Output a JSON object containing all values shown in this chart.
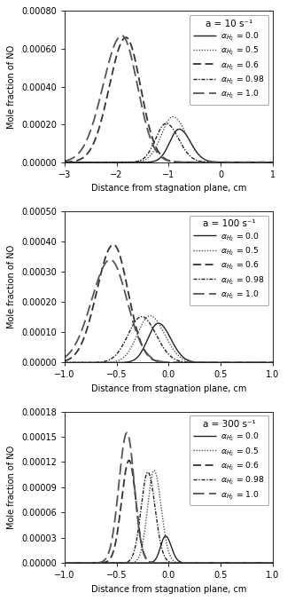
{
  "panels": [
    {
      "title": "a = 10 s⁻¹",
      "xlim": [
        -3.0,
        1.0
      ],
      "xticks": [
        -3.0,
        -2.0,
        -1.0,
        0.0,
        1.0
      ],
      "ylim": [
        0,
        0.0008
      ],
      "yticks": [
        0.0,
        0.0002,
        0.0004,
        0.0006,
        0.0008
      ],
      "curves": [
        {
          "label": "0.0",
          "style": "solid",
          "color": "#222222",
          "lw": 1.0,
          "peak_x": -0.8,
          "peak_y": 0.000175,
          "sigma_l": 0.18,
          "sigma_r": 0.22
        },
        {
          "label": "0.5",
          "style": "dotted",
          "color": "#555555",
          "lw": 1.0,
          "peak_x": -0.92,
          "peak_y": 0.00024,
          "sigma_l": 0.22,
          "sigma_r": 0.26
        },
        {
          "label": "0.6",
          "style": "dashed",
          "color": "#333333",
          "lw": 1.3,
          "peak_x": -1.82,
          "peak_y": 0.00066,
          "sigma_l": 0.32,
          "sigma_r": 0.28
        },
        {
          "label": "0.98",
          "style": "dashdot",
          "color": "#222222",
          "lw": 1.0,
          "peak_x": -1.05,
          "peak_y": 0.000205,
          "sigma_l": 0.2,
          "sigma_r": 0.24
        },
        {
          "label": "1.0",
          "style": "loosedash",
          "color": "#555555",
          "lw": 1.3,
          "peak_x": -1.9,
          "peak_y": 0.00067,
          "sigma_l": 0.36,
          "sigma_r": 0.3
        }
      ]
    },
    {
      "title": "a = 100 s⁻¹",
      "xlim": [
        -1.0,
        1.0
      ],
      "xticks": [
        -1.0,
        -0.5,
        0.0,
        0.5,
        1.0
      ],
      "ylim": [
        0,
        0.0005
      ],
      "yticks": [
        0.0,
        0.0001,
        0.0002,
        0.0003,
        0.0004,
        0.0005
      ],
      "curves": [
        {
          "label": "0.0",
          "style": "solid",
          "color": "#222222",
          "lw": 1.0,
          "peak_x": -0.1,
          "peak_y": 0.00013,
          "sigma_l": 0.1,
          "sigma_r": 0.12
        },
        {
          "label": "0.5",
          "style": "dotted",
          "color": "#555555",
          "lw": 1.0,
          "peak_x": -0.18,
          "peak_y": 0.000155,
          "sigma_l": 0.12,
          "sigma_r": 0.14
        },
        {
          "label": "0.6",
          "style": "dashed",
          "color": "#333333",
          "lw": 1.3,
          "peak_x": -0.53,
          "peak_y": 0.00039,
          "sigma_l": 0.16,
          "sigma_r": 0.14
        },
        {
          "label": "0.98",
          "style": "dashdot",
          "color": "#222222",
          "lw": 1.0,
          "peak_x": -0.26,
          "peak_y": 0.000152,
          "sigma_l": 0.13,
          "sigma_r": 0.14
        },
        {
          "label": "1.0",
          "style": "loosedash",
          "color": "#555555",
          "lw": 1.3,
          "peak_x": -0.56,
          "peak_y": 0.00034,
          "sigma_l": 0.18,
          "sigma_r": 0.16
        }
      ]
    },
    {
      "title": "a = 300 s⁻¹",
      "xlim": [
        -1.0,
        1.0
      ],
      "xticks": [
        -1.0,
        -0.5,
        0.0,
        0.5,
        1.0
      ],
      "ylim": [
        0,
        0.00018
      ],
      "yticks": [
        0.0,
        3e-05,
        6e-05,
        9e-05,
        0.00012,
        0.00015,
        0.00018
      ],
      "curves": [
        {
          "label": "0.0",
          "style": "solid",
          "color": "#222222",
          "lw": 1.0,
          "peak_x": -0.03,
          "peak_y": 3.2e-05,
          "sigma_l": 0.048,
          "sigma_r": 0.055
        },
        {
          "label": "0.5",
          "style": "dotted",
          "color": "#555555",
          "lw": 1.0,
          "peak_x": -0.14,
          "peak_y": 0.00011,
          "sigma_l": 0.062,
          "sigma_r": 0.068
        },
        {
          "label": "0.6",
          "style": "dashed",
          "color": "#333333",
          "lw": 1.3,
          "peak_x": -0.38,
          "peak_y": 0.000122,
          "sigma_l": 0.072,
          "sigma_r": 0.065
        },
        {
          "label": "0.98",
          "style": "dashdot",
          "color": "#222222",
          "lw": 1.0,
          "peak_x": -0.2,
          "peak_y": 0.000108,
          "sigma_l": 0.065,
          "sigma_r": 0.07
        },
        {
          "label": "1.0",
          "style": "loosedash",
          "color": "#555555",
          "lw": 1.3,
          "peak_x": -0.4,
          "peak_y": 0.000155,
          "sigma_l": 0.078,
          "sigma_r": 0.07
        }
      ]
    }
  ],
  "xlabel": "Distance from stagnation plane, cm",
  "ylabel": "Mole fraction of NO",
  "bg_color": "#ffffff",
  "fontsize": 7.0,
  "title_fontsize": 7.5
}
